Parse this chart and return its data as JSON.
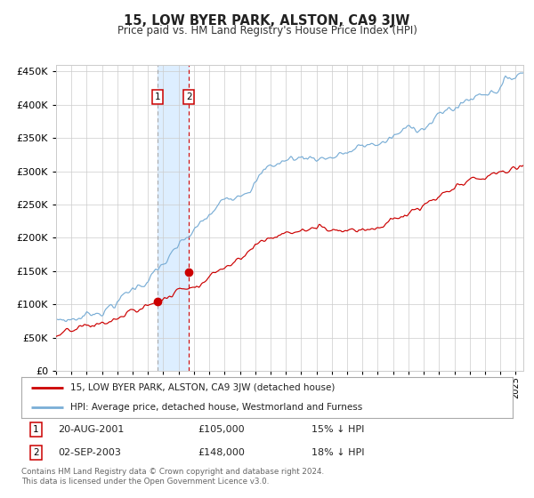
{
  "title": "15, LOW BYER PARK, ALSTON, CA9 3JW",
  "subtitle": "Price paid vs. HM Land Registry's House Price Index (HPI)",
  "xlim_start": 1995.0,
  "xlim_end": 2025.5,
  "ylim": [
    0,
    460000
  ],
  "yticks": [
    0,
    50000,
    100000,
    150000,
    200000,
    250000,
    300000,
    350000,
    400000,
    450000
  ],
  "transaction1_date": 2001.635,
  "transaction1_price": 105000,
  "transaction1_label": "1",
  "transaction2_date": 2003.668,
  "transaction2_price": 148000,
  "transaction2_label": "2",
  "legend_red_label": "15, LOW BYER PARK, ALSTON, CA9 3JW (detached house)",
  "legend_blue_label": "HPI: Average price, detached house, Westmorland and Furness",
  "annot1_date": "20-AUG-2001",
  "annot1_price": "£105,000",
  "annot1_hpi": "15% ↓ HPI",
  "annot2_date": "02-SEP-2003",
  "annot2_price": "£148,000",
  "annot2_hpi": "18% ↓ HPI",
  "footer": "Contains HM Land Registry data © Crown copyright and database right 2024.\nThis data is licensed under the Open Government Licence v3.0.",
  "red_color": "#cc0000",
  "blue_color": "#7aaed6",
  "blue_shading": "#ddeeff",
  "grid_color": "#cccccc",
  "background_color": "#ffffff"
}
